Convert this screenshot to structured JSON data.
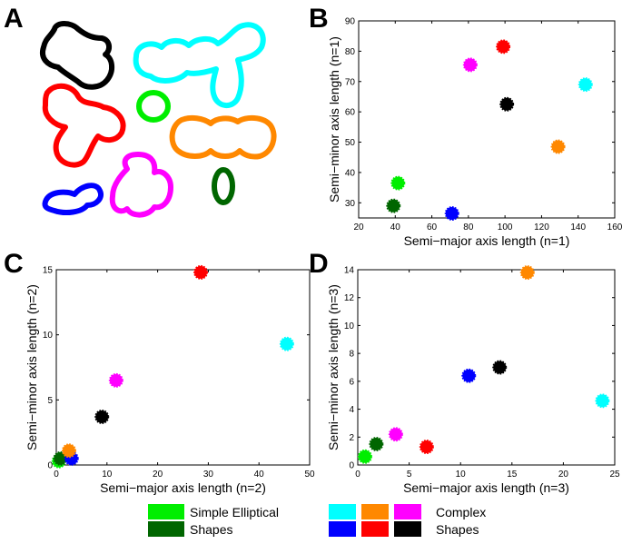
{
  "panel_labels": {
    "a": "A",
    "b": "B",
    "c": "C",
    "d": "D"
  },
  "colors": {
    "light_green": "#00ee00",
    "dark_green": "#006600",
    "cyan": "#00ffff",
    "orange": "#ff8800",
    "magenta": "#ff00ff",
    "blue": "#0000ff",
    "red": "#ff0000",
    "black": "#000000"
  },
  "legend": {
    "simple_label_1": "Simple Elliptical",
    "simple_label_2": "Shapes",
    "complex_label_1": "Complex",
    "complex_label_2": "Shapes"
  },
  "chart_data": [
    {
      "id": "B",
      "type": "scatter",
      "xlabel": "Semi−major axis length (n=1)",
      "ylabel": "Semi−minor axis length (n=1)",
      "xlim": [
        20,
        160
      ],
      "ylim": [
        25,
        90
      ],
      "xticks": [
        20,
        40,
        60,
        80,
        100,
        120,
        140,
        160
      ],
      "yticks": [
        30,
        40,
        50,
        60,
        70,
        80,
        90
      ],
      "points": [
        {
          "shape": "light_green",
          "x": 41.5,
          "y": 36.5
        },
        {
          "shape": "dark_green",
          "x": 39,
          "y": 29
        },
        {
          "shape": "blue",
          "x": 71,
          "y": 26.5
        },
        {
          "shape": "magenta",
          "x": 81,
          "y": 75.5
        },
        {
          "shape": "red",
          "x": 99,
          "y": 81.5
        },
        {
          "shape": "black",
          "x": 101,
          "y": 62.5
        },
        {
          "shape": "orange",
          "x": 129,
          "y": 48.5
        },
        {
          "shape": "cyan",
          "x": 144,
          "y": 69
        }
      ]
    },
    {
      "id": "C",
      "type": "scatter",
      "xlabel": "Semi−major axis length (n=2)",
      "ylabel": "Semi−minor axis length (n=2)",
      "xlim": [
        0,
        50
      ],
      "ylim": [
        0,
        15
      ],
      "xticks": [
        0,
        10,
        20,
        30,
        40,
        50
      ],
      "yticks": [
        0,
        5,
        10,
        15
      ],
      "points": [
        {
          "shape": "light_green",
          "x": 0.5,
          "y": 0.3
        },
        {
          "shape": "dark_green",
          "x": 0.8,
          "y": 0.5
        },
        {
          "shape": "blue",
          "x": 3,
          "y": 0.5
        },
        {
          "shape": "orange",
          "x": 2.5,
          "y": 1.1
        },
        {
          "shape": "black",
          "x": 9,
          "y": 3.7
        },
        {
          "shape": "magenta",
          "x": 11.8,
          "y": 6.5
        },
        {
          "shape": "red",
          "x": 28.5,
          "y": 14.8
        },
        {
          "shape": "cyan",
          "x": 45.5,
          "y": 9.3
        }
      ]
    },
    {
      "id": "D",
      "type": "scatter",
      "xlabel": "Semi−major axis length (n=3)",
      "ylabel": "Semi−minor axis length (n=3)",
      "xlim": [
        0,
        25
      ],
      "ylim": [
        0,
        14
      ],
      "xticks": [
        0,
        5,
        10,
        15,
        20,
        25
      ],
      "yticks": [
        0,
        2,
        4,
        6,
        8,
        10,
        12,
        14
      ],
      "points": [
        {
          "shape": "light_green",
          "x": 0.7,
          "y": 0.6
        },
        {
          "shape": "dark_green",
          "x": 1.8,
          "y": 1.5
        },
        {
          "shape": "magenta",
          "x": 3.7,
          "y": 2.2
        },
        {
          "shape": "red",
          "x": 6.7,
          "y": 1.3
        },
        {
          "shape": "blue",
          "x": 10.8,
          "y": 6.4
        },
        {
          "shape": "black",
          "x": 13.8,
          "y": 7
        },
        {
          "shape": "orange",
          "x": 16.5,
          "y": 13.8
        },
        {
          "shape": "cyan",
          "x": 23.8,
          "y": 4.6
        }
      ]
    }
  ]
}
